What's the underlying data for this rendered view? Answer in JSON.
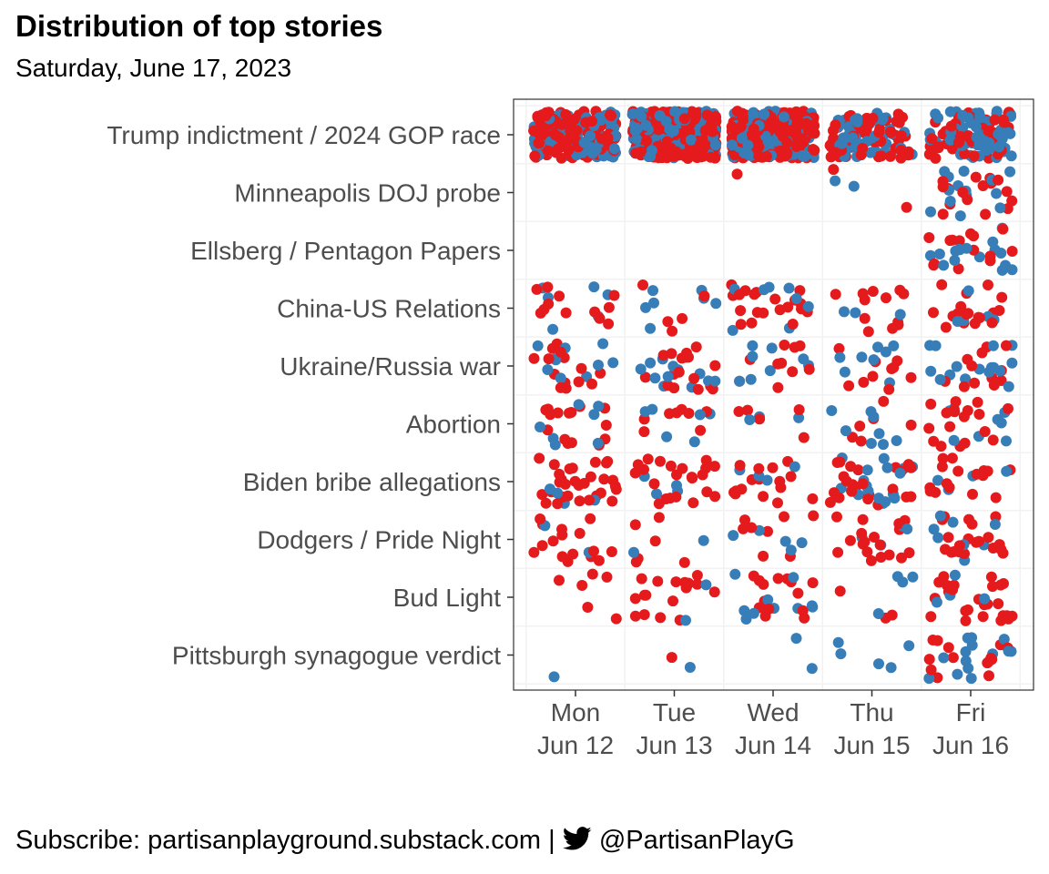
{
  "title": "Distribution of top stories",
  "subtitle": "Saturday, June 17, 2023",
  "caption": {
    "text_before": "Subscribe: partisanplayground.substack.com |",
    "icon": "twitter-bird-icon",
    "handle": "@PartisanPlayG"
  },
  "colors": {
    "red": "#E41A1C",
    "blue": "#377EB8"
  },
  "chart_data": {
    "type": "scatter",
    "jitter": true,
    "grid": true,
    "legend": "none",
    "x_categories": [
      {
        "day": "Mon",
        "date": "Jun 12"
      },
      {
        "day": "Tue",
        "date": "Jun 13"
      },
      {
        "day": "Wed",
        "date": "Jun 14"
      },
      {
        "day": "Thu",
        "date": "Jun 15"
      },
      {
        "day": "Fri",
        "date": "Jun 16"
      }
    ],
    "y_categories": [
      "Trump indictment / 2024 GOP race",
      "Minneapolis DOJ probe",
      "Ellsberg / Pentagon Papers",
      "China-US Relations",
      "Ukraine/Russia war",
      "Abortion",
      "Biden bribe allegations",
      "Dodgers / Pride Night",
      "Bud Light",
      "Pittsburgh synagogue verdict"
    ],
    "series": [
      "#E41A1C",
      "#377EB8"
    ],
    "counts": [
      [
        [
          140,
          90
        ],
        [
          260,
          140
        ],
        [
          250,
          130
        ],
        [
          60,
          50
        ],
        [
          60,
          70
        ]
      ],
      [
        [
          0,
          0
        ],
        [
          0,
          0
        ],
        [
          1,
          0
        ],
        [
          2,
          2
        ],
        [
          16,
          14
        ]
      ],
      [
        [
          0,
          0
        ],
        [
          0,
          0
        ],
        [
          0,
          0
        ],
        [
          0,
          0
        ],
        [
          14,
          16
        ]
      ],
      [
        [
          12,
          6
        ],
        [
          5,
          7
        ],
        [
          20,
          8
        ],
        [
          12,
          3
        ],
        [
          18,
          5
        ]
      ],
      [
        [
          14,
          10
        ],
        [
          18,
          12
        ],
        [
          10,
          8
        ],
        [
          10,
          8
        ],
        [
          12,
          16
        ]
      ],
      [
        [
          15,
          7
        ],
        [
          8,
          6
        ],
        [
          5,
          3
        ],
        [
          6,
          8
        ],
        [
          18,
          8
        ]
      ],
      [
        [
          30,
          4
        ],
        [
          22,
          4
        ],
        [
          16,
          4
        ],
        [
          24,
          18
        ],
        [
          16,
          4
        ]
      ],
      [
        [
          16,
          2
        ],
        [
          6,
          2
        ],
        [
          8,
          5
        ],
        [
          18,
          4
        ],
        [
          20,
          8
        ]
      ],
      [
        [
          6,
          0
        ],
        [
          18,
          2
        ],
        [
          14,
          10
        ],
        [
          3,
          4
        ],
        [
          26,
          4
        ]
      ],
      [
        [
          0,
          1
        ],
        [
          1,
          1
        ],
        [
          0,
          2
        ],
        [
          0,
          5
        ],
        [
          14,
          14
        ]
      ]
    ]
  }
}
